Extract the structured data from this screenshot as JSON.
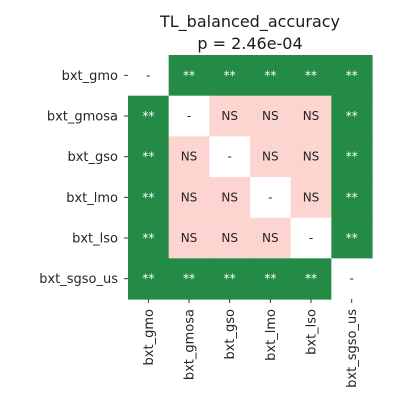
{
  "chart_data": {
    "type": "heatmap",
    "title": "TL_balanced_accuracy",
    "subtitle": "p = 2.46e-04",
    "row_labels": [
      "bxt_gmo",
      "bxt_gmosa",
      "bxt_gso",
      "bxt_lmo",
      "bxt_lso",
      "bxt_sgso_us"
    ],
    "col_labels": [
      "bxt_gmo",
      "bxt_gmosa",
      "bxt_gso",
      "bxt_lmo",
      "bxt_lso",
      "bxt_sgso_us"
    ],
    "cells": [
      [
        "-",
        "**",
        "**",
        "**",
        "**",
        "**"
      ],
      [
        "**",
        "-",
        "NS",
        "NS",
        "NS",
        "**"
      ],
      [
        "**",
        "NS",
        "-",
        "NS",
        "NS",
        "**"
      ],
      [
        "**",
        "NS",
        "NS",
        "-",
        "NS",
        "**"
      ],
      [
        "**",
        "NS",
        "NS",
        "NS",
        "-",
        "**"
      ],
      [
        "**",
        "**",
        "**",
        "**",
        "**",
        "-"
      ]
    ],
    "colors": {
      "significant": "#238b45",
      "not_significant": "#fcd5d0",
      "diagonal": "#ffffff",
      "text_on_significant": "#ffffff",
      "text_default": "#262626"
    },
    "grid": false,
    "legend": "none"
  }
}
